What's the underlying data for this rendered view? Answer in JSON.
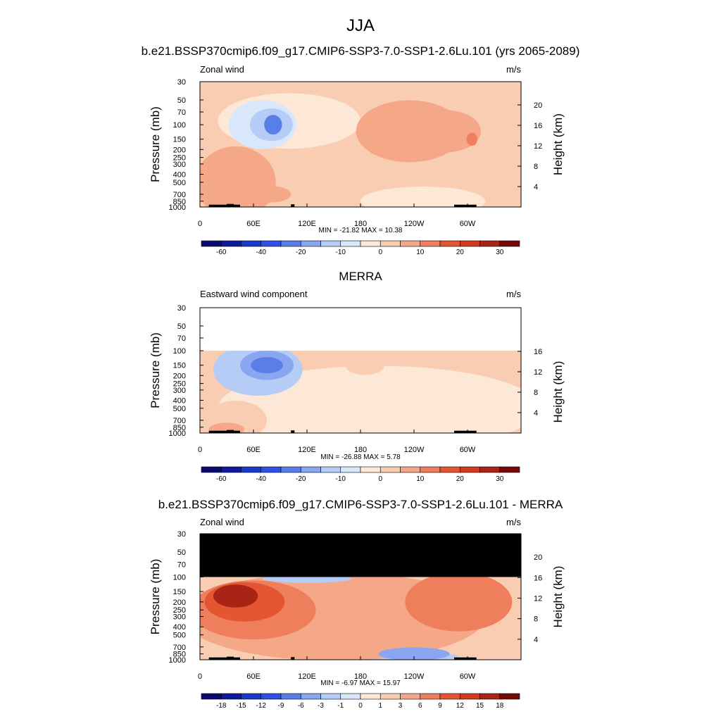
{
  "title": "JJA",
  "panels": [
    {
      "title": "b.e21.BSSP370cmip6.f09_g17.CMIP6-SSP3-7.0-SSP1-2.6Lu.101 (yrs 2065-2089)",
      "left_label": "Zonal wind",
      "units": "m/s",
      "stats": "MIN = -21.82  MAX =  10.38",
      "colorbar": "full",
      "mask_above_100mb": false,
      "blobs": [
        {
          "lon": 70,
          "p": 100,
          "rlon": 38,
          "rz": 1.5,
          "val": -8
        },
        {
          "lon": 80,
          "p": 100,
          "rlon": 24,
          "rz": 1.0,
          "val": -15
        },
        {
          "lon": 82,
          "p": 100,
          "rlon": 10,
          "rz": 0.6,
          "val": -25
        },
        {
          "lon": 100,
          "p": 90,
          "rlon": 80,
          "rz": 1.7,
          "val": -5
        },
        {
          "lon": 235,
          "p": 120,
          "rlon": 60,
          "rz": 1.9,
          "val": 5
        },
        {
          "lon": 275,
          "p": 120,
          "rlon": 40,
          "rz": 1.3,
          "val": 8
        },
        {
          "lon": 305,
          "p": 150,
          "rlon": 6,
          "rz": 0.4,
          "val": 12
        },
        {
          "lon": 40,
          "p": 500,
          "rlon": 45,
          "rz": 2.2,
          "val": 5
        },
        {
          "lon": 80,
          "p": 700,
          "rlon": 22,
          "rz": 0.5,
          "val": 7
        },
        {
          "lon": 250,
          "p": 850,
          "rlon": 70,
          "rz": 0.9,
          "val": -4
        },
        {
          "lon": 10,
          "p": 120,
          "rlon": 10,
          "rz": 0.8,
          "val": 3
        }
      ]
    },
    {
      "title": "MERRA",
      "left_label": "Eastward wind component",
      "units": "m/s",
      "stats": "MIN = -26.88  MAX =   5.78",
      "colorbar": "full",
      "mask_above_100mb": "white",
      "blobs": [
        {
          "lon": 65,
          "p": 170,
          "rlon": 50,
          "rz": 1.6,
          "val": -12
        },
        {
          "lon": 75,
          "p": 150,
          "rlon": 30,
          "rz": 0.9,
          "val": -20
        },
        {
          "lon": 75,
          "p": 150,
          "rlon": 18,
          "rz": 0.5,
          "val": -28
        },
        {
          "lon": 200,
          "p": 500,
          "rlon": 180,
          "rz": 2.6,
          "val": -4
        },
        {
          "lon": 185,
          "p": 150,
          "rlon": 22,
          "rz": 0.6,
          "val": 4
        },
        {
          "lon": 290,
          "p": 140,
          "rlon": 30,
          "rz": 0.7,
          "val": 3
        },
        {
          "lon": 40,
          "p": 700,
          "rlon": 35,
          "rz": 1.2,
          "val": 4
        },
        {
          "lon": 30,
          "p": 900,
          "rlon": 20,
          "rz": 0.4,
          "val": 6
        }
      ]
    },
    {
      "title": "b.e21.BSSP370cmip6.f09_g17.CMIP6-SSP3-7.0-SSP1-2.6Lu.101 - MERRA",
      "left_label": "Zonal wind",
      "units": "m/s",
      "stats": "MIN =  -6.97  MAX =  15.97",
      "colorbar": "diff",
      "mask_above_100mb": "black",
      "blobs": [
        {
          "lon": 150,
          "p": 300,
          "rlon": 170,
          "rz": 2.7,
          "val": 3
        },
        {
          "lon": 60,
          "p": 250,
          "rlon": 70,
          "rz": 1.8,
          "val": 7
        },
        {
          "lon": 50,
          "p": 200,
          "rlon": 45,
          "rz": 1.2,
          "val": 11
        },
        {
          "lon": 40,
          "p": 170,
          "rlon": 25,
          "rz": 0.7,
          "val": 15
        },
        {
          "lon": 290,
          "p": 200,
          "rlon": 60,
          "rz": 1.8,
          "val": 7
        },
        {
          "lon": 180,
          "p": 150,
          "rlon": 14,
          "rz": 1.5,
          "val": 0.5
        },
        {
          "lon": 120,
          "p": 105,
          "rlon": 50,
          "rz": 0.25,
          "val": -3
        },
        {
          "lon": 240,
          "p": 850,
          "rlon": 40,
          "rz": 0.4,
          "val": -4
        },
        {
          "lon": 200,
          "p": 920,
          "rlon": 90,
          "rz": 0.35,
          "val": -2
        }
      ]
    }
  ],
  "x_ticks": [
    "0",
    "60E",
    "120E",
    "180",
    "120W",
    "60W"
  ],
  "y_ticks": [
    "30",
    "50",
    "70",
    "100",
    "150",
    "200",
    "250",
    "300",
    "400",
    "500",
    "700",
    "850",
    "1000"
  ],
  "height_ticks": [
    "20",
    "16",
    "12",
    "8",
    "4"
  ],
  "y_label": "Pressure (mb)",
  "right_label": "Height (km)",
  "colorbar_full": {
    "colors": [
      "#0a0a6e",
      "#0d1a9c",
      "#1a3acc",
      "#3050e8",
      "#5a7ee8",
      "#8aa6f0",
      "#b4ccf6",
      "#d8e8fa",
      "#fde8d8",
      "#f9cdb2",
      "#f4a888",
      "#ee7e5c",
      "#e45532",
      "#d43a20",
      "#a82414",
      "#760808"
    ],
    "labels": [
      "-60",
      "-40",
      "-20",
      "-10",
      "0",
      "10",
      "20",
      "30"
    ],
    "bounds": [
      -70,
      -60,
      -50,
      -40,
      -30,
      -20,
      -15,
      -10,
      -5,
      0,
      5,
      10,
      15,
      20,
      25,
      30
    ]
  },
  "colorbar_diff": {
    "colors": [
      "#0a0a6e",
      "#0d1a9c",
      "#1a3acc",
      "#3050e8",
      "#5a7ee8",
      "#8aa6f0",
      "#b4ccf6",
      "#d8e8fa",
      "#fde8d8",
      "#f9cdb2",
      "#f4a888",
      "#ee7e5c",
      "#e45532",
      "#d43a20",
      "#a82414",
      "#760808"
    ],
    "labels": [
      "-18",
      "-15",
      "-12",
      "-9",
      "-6",
      "-3",
      "-1",
      "0",
      "1",
      "3",
      "6",
      "9",
      "12",
      "15",
      "18"
    ],
    "bounds": [
      -21,
      -18,
      -15,
      -12,
      -9,
      -6,
      -3,
      -1,
      0,
      1,
      3,
      6,
      9,
      12,
      15,
      18
    ]
  },
  "chart_data": [
    {
      "type": "heatmap",
      "title": "b.e21.BSSP370cmip6.f09_g17.CMIP6-SSP3-7.0-SSP1-2.6Lu.101 (yrs 2065-2089)",
      "subtitle": "Zonal wind",
      "units": "m/s",
      "xlabel": "",
      "ylabel": "Pressure (mb)",
      "y2label": "Height (km)",
      "xlim": [
        0,
        360
      ],
      "ylim": [
        1000,
        30
      ],
      "y_scale": "log",
      "min": -21.82,
      "max": 10.38
    },
    {
      "type": "heatmap",
      "title": "MERRA",
      "subtitle": "Eastward wind component",
      "units": "m/s",
      "xlabel": "",
      "ylabel": "Pressure (mb)",
      "y2label": "Height (km)",
      "xlim": [
        0,
        360
      ],
      "ylim": [
        1000,
        30
      ],
      "y_scale": "log",
      "min": -26.88,
      "max": 5.78
    },
    {
      "type": "heatmap",
      "title": "b.e21.BSSP370cmip6.f09_g17.CMIP6-SSP3-7.0-SSP1-2.6Lu.101 - MERRA",
      "subtitle": "Zonal wind",
      "units": "m/s",
      "xlabel": "",
      "ylabel": "Pressure (mb)",
      "y2label": "Height (km)",
      "xlim": [
        0,
        360
      ],
      "ylim": [
        1000,
        30
      ],
      "y_scale": "log",
      "min": -6.97,
      "max": 15.97
    }
  ]
}
